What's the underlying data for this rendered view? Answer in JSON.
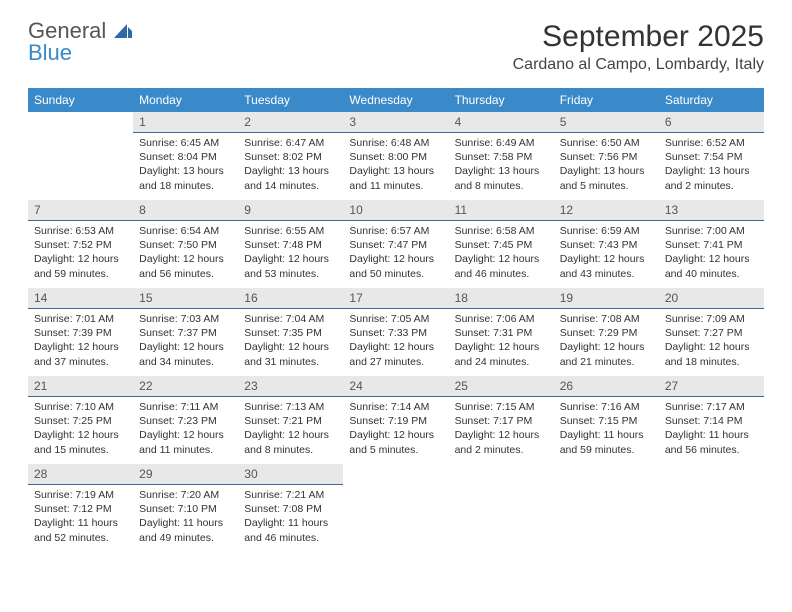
{
  "brand": {
    "line1": "General",
    "line2": "Blue"
  },
  "title": "September 2025",
  "location": "Cardano al Campo, Lombardy, Italy",
  "colors": {
    "header_bg": "#3a89c9",
    "header_text": "#ffffff",
    "daynum_bg": "#e8e8e8",
    "daynum_border": "#3a6a9a",
    "body_text": "#333333",
    "brand_gray": "#555555",
    "brand_blue": "#3a89c9"
  },
  "weekdays": [
    "Sunday",
    "Monday",
    "Tuesday",
    "Wednesday",
    "Thursday",
    "Friday",
    "Saturday"
  ],
  "weeks": [
    [
      {
        "n": "",
        "sr": "",
        "ss": "",
        "dl": ""
      },
      {
        "n": "1",
        "sr": "Sunrise: 6:45 AM",
        "ss": "Sunset: 8:04 PM",
        "dl": "Daylight: 13 hours and 18 minutes."
      },
      {
        "n": "2",
        "sr": "Sunrise: 6:47 AM",
        "ss": "Sunset: 8:02 PM",
        "dl": "Daylight: 13 hours and 14 minutes."
      },
      {
        "n": "3",
        "sr": "Sunrise: 6:48 AM",
        "ss": "Sunset: 8:00 PM",
        "dl": "Daylight: 13 hours and 11 minutes."
      },
      {
        "n": "4",
        "sr": "Sunrise: 6:49 AM",
        "ss": "Sunset: 7:58 PM",
        "dl": "Daylight: 13 hours and 8 minutes."
      },
      {
        "n": "5",
        "sr": "Sunrise: 6:50 AM",
        "ss": "Sunset: 7:56 PM",
        "dl": "Daylight: 13 hours and 5 minutes."
      },
      {
        "n": "6",
        "sr": "Sunrise: 6:52 AM",
        "ss": "Sunset: 7:54 PM",
        "dl": "Daylight: 13 hours and 2 minutes."
      }
    ],
    [
      {
        "n": "7",
        "sr": "Sunrise: 6:53 AM",
        "ss": "Sunset: 7:52 PM",
        "dl": "Daylight: 12 hours and 59 minutes."
      },
      {
        "n": "8",
        "sr": "Sunrise: 6:54 AM",
        "ss": "Sunset: 7:50 PM",
        "dl": "Daylight: 12 hours and 56 minutes."
      },
      {
        "n": "9",
        "sr": "Sunrise: 6:55 AM",
        "ss": "Sunset: 7:48 PM",
        "dl": "Daylight: 12 hours and 53 minutes."
      },
      {
        "n": "10",
        "sr": "Sunrise: 6:57 AM",
        "ss": "Sunset: 7:47 PM",
        "dl": "Daylight: 12 hours and 50 minutes."
      },
      {
        "n": "11",
        "sr": "Sunrise: 6:58 AM",
        "ss": "Sunset: 7:45 PM",
        "dl": "Daylight: 12 hours and 46 minutes."
      },
      {
        "n": "12",
        "sr": "Sunrise: 6:59 AM",
        "ss": "Sunset: 7:43 PM",
        "dl": "Daylight: 12 hours and 43 minutes."
      },
      {
        "n": "13",
        "sr": "Sunrise: 7:00 AM",
        "ss": "Sunset: 7:41 PM",
        "dl": "Daylight: 12 hours and 40 minutes."
      }
    ],
    [
      {
        "n": "14",
        "sr": "Sunrise: 7:01 AM",
        "ss": "Sunset: 7:39 PM",
        "dl": "Daylight: 12 hours and 37 minutes."
      },
      {
        "n": "15",
        "sr": "Sunrise: 7:03 AM",
        "ss": "Sunset: 7:37 PM",
        "dl": "Daylight: 12 hours and 34 minutes."
      },
      {
        "n": "16",
        "sr": "Sunrise: 7:04 AM",
        "ss": "Sunset: 7:35 PM",
        "dl": "Daylight: 12 hours and 31 minutes."
      },
      {
        "n": "17",
        "sr": "Sunrise: 7:05 AM",
        "ss": "Sunset: 7:33 PM",
        "dl": "Daylight: 12 hours and 27 minutes."
      },
      {
        "n": "18",
        "sr": "Sunrise: 7:06 AM",
        "ss": "Sunset: 7:31 PM",
        "dl": "Daylight: 12 hours and 24 minutes."
      },
      {
        "n": "19",
        "sr": "Sunrise: 7:08 AM",
        "ss": "Sunset: 7:29 PM",
        "dl": "Daylight: 12 hours and 21 minutes."
      },
      {
        "n": "20",
        "sr": "Sunrise: 7:09 AM",
        "ss": "Sunset: 7:27 PM",
        "dl": "Daylight: 12 hours and 18 minutes."
      }
    ],
    [
      {
        "n": "21",
        "sr": "Sunrise: 7:10 AM",
        "ss": "Sunset: 7:25 PM",
        "dl": "Daylight: 12 hours and 15 minutes."
      },
      {
        "n": "22",
        "sr": "Sunrise: 7:11 AM",
        "ss": "Sunset: 7:23 PM",
        "dl": "Daylight: 12 hours and 11 minutes."
      },
      {
        "n": "23",
        "sr": "Sunrise: 7:13 AM",
        "ss": "Sunset: 7:21 PM",
        "dl": "Daylight: 12 hours and 8 minutes."
      },
      {
        "n": "24",
        "sr": "Sunrise: 7:14 AM",
        "ss": "Sunset: 7:19 PM",
        "dl": "Daylight: 12 hours and 5 minutes."
      },
      {
        "n": "25",
        "sr": "Sunrise: 7:15 AM",
        "ss": "Sunset: 7:17 PM",
        "dl": "Daylight: 12 hours and 2 minutes."
      },
      {
        "n": "26",
        "sr": "Sunrise: 7:16 AM",
        "ss": "Sunset: 7:15 PM",
        "dl": "Daylight: 11 hours and 59 minutes."
      },
      {
        "n": "27",
        "sr": "Sunrise: 7:17 AM",
        "ss": "Sunset: 7:14 PM",
        "dl": "Daylight: 11 hours and 56 minutes."
      }
    ],
    [
      {
        "n": "28",
        "sr": "Sunrise: 7:19 AM",
        "ss": "Sunset: 7:12 PM",
        "dl": "Daylight: 11 hours and 52 minutes."
      },
      {
        "n": "29",
        "sr": "Sunrise: 7:20 AM",
        "ss": "Sunset: 7:10 PM",
        "dl": "Daylight: 11 hours and 49 minutes."
      },
      {
        "n": "30",
        "sr": "Sunrise: 7:21 AM",
        "ss": "Sunset: 7:08 PM",
        "dl": "Daylight: 11 hours and 46 minutes."
      },
      {
        "n": "",
        "sr": "",
        "ss": "",
        "dl": ""
      },
      {
        "n": "",
        "sr": "",
        "ss": "",
        "dl": ""
      },
      {
        "n": "",
        "sr": "",
        "ss": "",
        "dl": ""
      },
      {
        "n": "",
        "sr": "",
        "ss": "",
        "dl": ""
      }
    ]
  ]
}
